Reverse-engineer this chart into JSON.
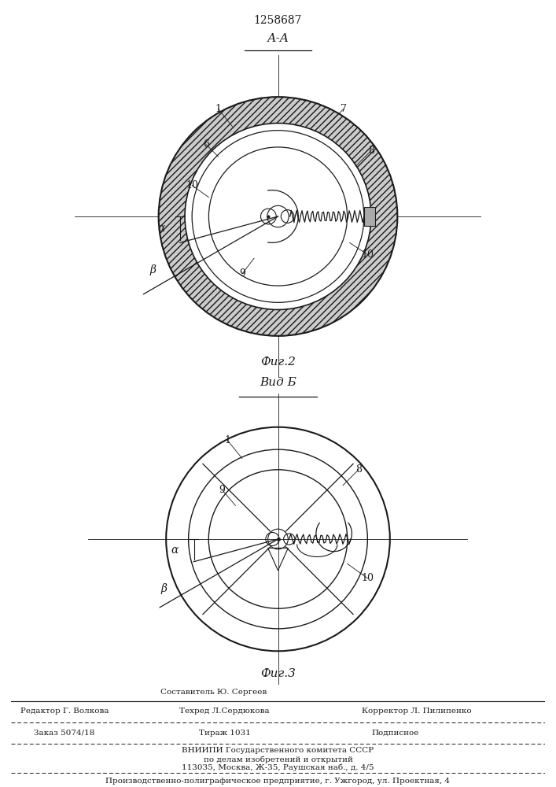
{
  "patent_number": "1258687",
  "fig2_label": "А-А",
  "fig2_caption": "Фиг.2",
  "fig3_label": "Вид Б",
  "fig3_caption": "Фиг.3",
  "bg_color": "#ffffff",
  "line_color": "#1a1a1a",
  "footer": {
    "editor_label": "Редактор Г. Волкова",
    "compositor_label": "Составитель Ю. Сергеев",
    "techred_label": "Техред Л.Сердюкова",
    "corrector_label": "Корректор Л. Пилипенко",
    "order_label": "Заказ 5074/18",
    "tirazh_label": "Тираж 1031",
    "podpisnoe_label": "Подписное",
    "vniiipi_line1": "ВНИИПИ Государственного комитета СССР",
    "vniiipi_line2": "по делам изобретений и открытий",
    "vniiipi_line3": "113035, Москва, Ж-35, Раушская наб., д. 4/5",
    "production_line": "Производственно-полиграфическое предприятие, г. Ужгород, ул. Проектная, 4"
  }
}
